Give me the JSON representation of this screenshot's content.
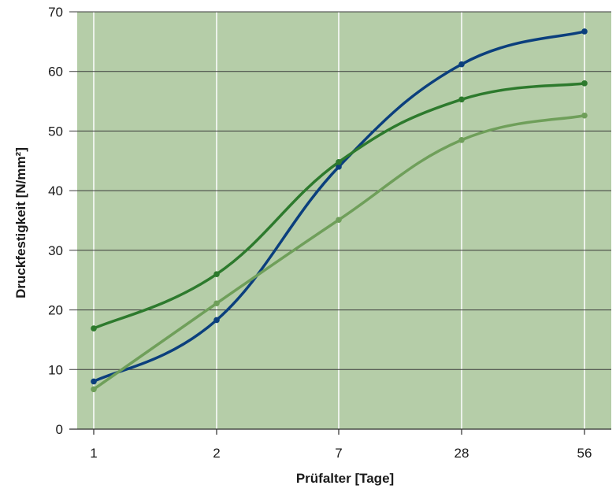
{
  "chart_data": {
    "type": "line",
    "title": "",
    "xlabel": "Prüfalter [Tage]",
    "ylabel": "Druckfestigkeit [N/mm²]",
    "categories": [
      "1",
      "2",
      "7",
      "28",
      "56"
    ],
    "ylim": [
      0,
      70
    ],
    "yticks": [
      0,
      10,
      20,
      30,
      40,
      50,
      60,
      70
    ],
    "grid": true,
    "legend": "none",
    "background_color": "#b5cda8",
    "series": [
      {
        "color": "#0b3f7d",
        "values": [
          8,
          18.3,
          44,
          61.2,
          66.7
        ]
      },
      {
        "color": "#2d7a2d",
        "values": [
          16.9,
          26,
          44.8,
          55.3,
          58
        ]
      },
      {
        "color": "#6f9f5a",
        "values": [
          6.7,
          21.1,
          35.1,
          48.5,
          52.6
        ]
      }
    ]
  }
}
